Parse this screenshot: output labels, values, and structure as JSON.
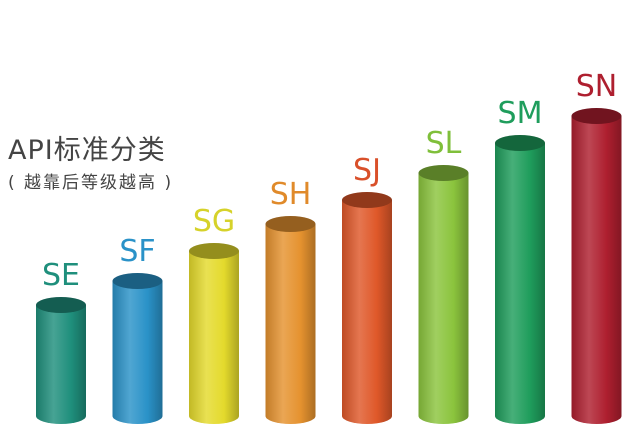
{
  "chart_data": {
    "type": "bar",
    "style": "3d-cylinder",
    "title": "API标准分类",
    "subtitle": "( 越靠后等级越高 )",
    "categories": [
      "SE",
      "SF",
      "SG",
      "SH",
      "SJ",
      "SL",
      "SM",
      "SN"
    ],
    "values": [
      37,
      45,
      55,
      64,
      72,
      81,
      91,
      100
    ],
    "value_unit": "relative height (% of tallest)",
    "colors": [
      "#1f8f7c",
      "#2a92c8",
      "#e4da2c",
      "#e5922f",
      "#df5829",
      "#8bc43d",
      "#1f9d5c",
      "#ae1f2f"
    ],
    "label_colors": [
      "#1f8f7c",
      "#2a92c8",
      "#d6d22a",
      "#e08a2a",
      "#d9502a",
      "#7fbf3a",
      "#1f9d5c",
      "#ae1f2f"
    ],
    "grid": false,
    "axes": false
  }
}
